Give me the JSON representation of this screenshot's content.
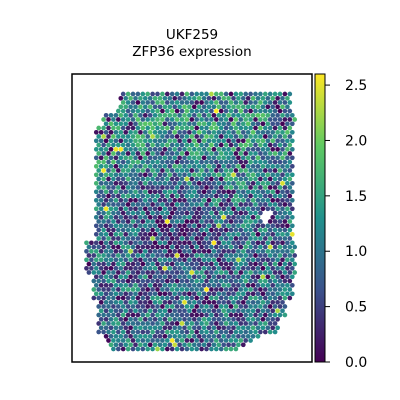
{
  "chart_data": {
    "type": "heatmap",
    "title": "UKF259",
    "subtitle": "ZFP36 expression",
    "xlabel": "",
    "ylabel": "",
    "colorbar": {
      "colormap": "viridis",
      "range": [
        0,
        2.6
      ],
      "ticks": [
        0.0,
        0.5,
        1.0,
        1.5,
        2.0,
        2.5
      ],
      "tick_labels": [
        "0.0",
        "0.5",
        "1.0",
        "1.5",
        "2.0",
        "2.5"
      ]
    },
    "colormap_stops": [
      "#440154",
      "#3b528b",
      "#21918c",
      "#5ec962",
      "#fde725"
    ],
    "grid": false,
    "axes_ticks": false
  }
}
